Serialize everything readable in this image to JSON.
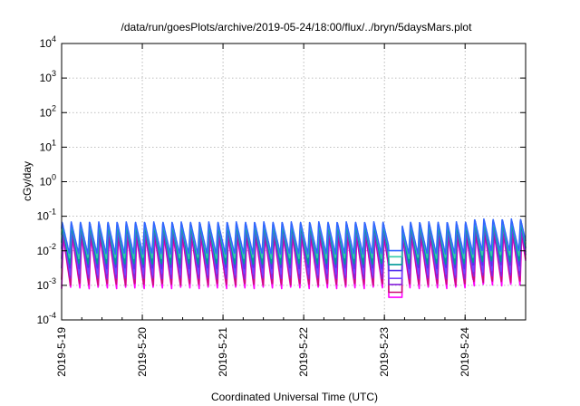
{
  "chart_data": {
    "type": "line",
    "title": "/data/run/goesPlots/archive/2019-05-24/18:00/flux/../bryn/5daysMars.plot",
    "xlabel": "Coordinated Universal Time (UTC)",
    "ylabel": "cGy/day",
    "yscale": "log",
    "ylim": [
      0.0001,
      10000
    ],
    "y_ticks": [
      {
        "base": "10",
        "exp": "-4"
      },
      {
        "base": "10",
        "exp": "-3"
      },
      {
        "base": "10",
        "exp": "-2"
      },
      {
        "base": "10",
        "exp": "-1"
      },
      {
        "base": "10",
        "exp": "0"
      },
      {
        "base": "10",
        "exp": "1"
      },
      {
        "base": "10",
        "exp": "2"
      },
      {
        "base": "10",
        "exp": "3"
      },
      {
        "base": "10",
        "exp": "4"
      }
    ],
    "x_range": [
      "2019-05-19",
      "2019-05-24T18:00"
    ],
    "x_ticks": [
      "2019-5-19",
      "2019-5-20",
      "2019-5-21",
      "2019-5-22",
      "2019-5-23",
      "2019-5-24"
    ],
    "grid": true,
    "legend": "none",
    "series": [
      {
        "color": "#ff00ff",
        "peak": 0.025,
        "trough": 0.0008
      },
      {
        "color": "#cc1177",
        "peak": 0.03,
        "trough": 0.001
      },
      {
        "color": "#8822dd",
        "peak": 0.04,
        "trough": 0.0015
      },
      {
        "color": "#7744ff",
        "peak": 0.05,
        "trough": 0.002
      },
      {
        "color": "#5533ee",
        "peak": 0.06,
        "trough": 0.003
      },
      {
        "color": "#009999",
        "peak": 0.055,
        "trough": 0.004
      },
      {
        "color": "#33ccaa",
        "peak": 0.065,
        "trough": 0.006
      },
      {
        "color": "#3366ff",
        "peak": 0.07,
        "trough": 0.008
      }
    ],
    "cycles_per_day": 8.8
  }
}
